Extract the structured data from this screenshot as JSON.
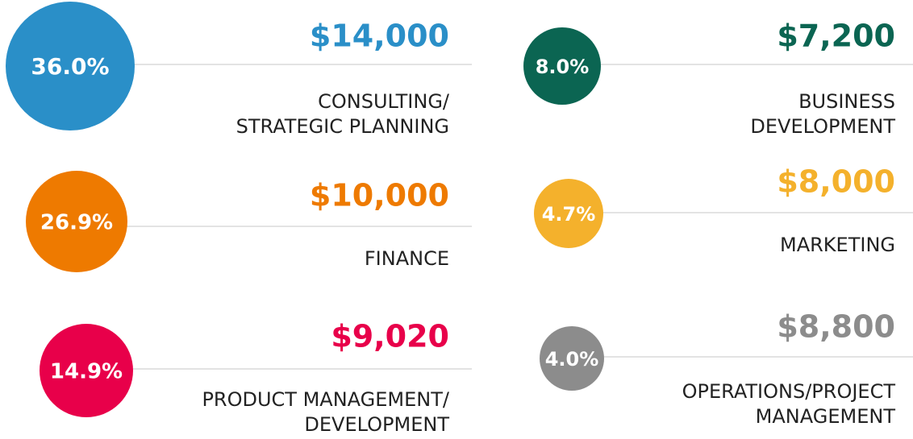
{
  "items": [
    {
      "percent": "36.0%",
      "amount": "$14,000",
      "label": [
        "CONSULTING/",
        "STRATEGIC PLANNING"
      ],
      "color": "#2a8fc8"
    },
    {
      "percent": "26.9%",
      "amount": "$10,000",
      "label": [
        "FINANCE"
      ],
      "color": "#ee7a00"
    },
    {
      "percent": "14.9%",
      "amount": "$9,020",
      "label": [
        "PRODUCT MANAGEMENT/",
        "DEVELOPMENT"
      ],
      "color": "#e8004a"
    },
    {
      "percent": "8.0%",
      "amount": "$7,200",
      "label": [
        "BUSINESS",
        "DEVELOPMENT"
      ],
      "color": "#0b6552"
    },
    {
      "percent": "4.7%",
      "amount": "$8,000",
      "label": [
        "MARKETING"
      ],
      "color": "#f4b12c"
    },
    {
      "percent": "4.0%",
      "amount": "$8,800",
      "label": [
        "OPERATIONS/PROJECT",
        "MANAGEMENT"
      ],
      "color": "#8c8c8c"
    }
  ]
}
